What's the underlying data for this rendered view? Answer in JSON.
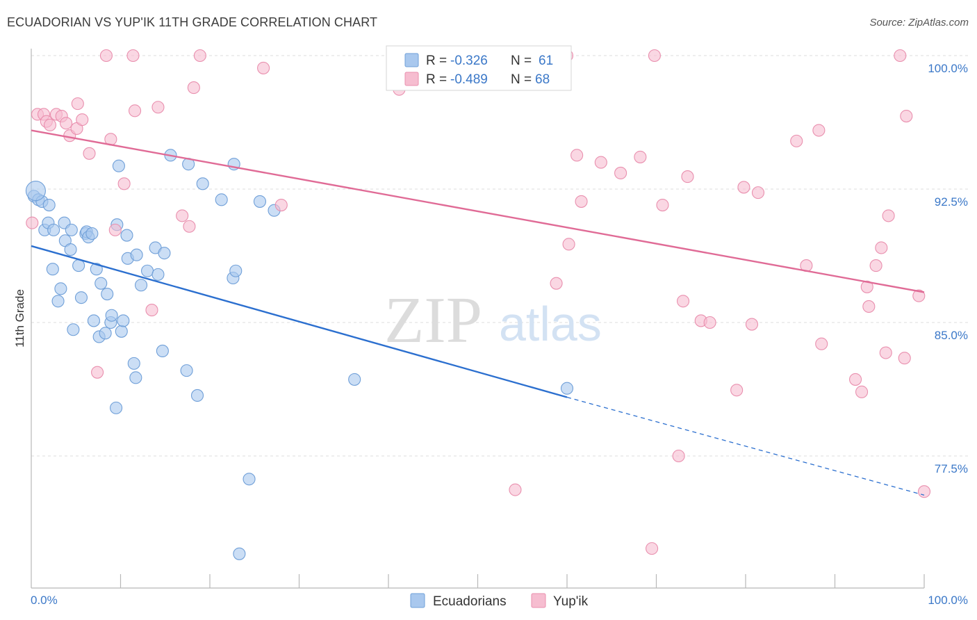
{
  "title": "ECUADORIAN VS YUP'IK 11TH GRADE CORRELATION CHART",
  "source": "Source: ZipAtlas.com",
  "watermark": {
    "zip": "ZIP",
    "atlas": "atlas"
  },
  "colors": {
    "blue_fill": "#a9c8ee",
    "blue_stroke": "#6f9fd8",
    "blue_line": "#2b6fcf",
    "pink_fill": "#f6bdd0",
    "pink_stroke": "#e98fae",
    "pink_line": "#e06b96",
    "accent_text": "#3b78c8",
    "grid": "#dedede"
  },
  "stats_legend": {
    "rows": [
      {
        "r_label": "R = ",
        "r_value": "-0.326",
        "n_label": "N = ",
        "n_value": "61",
        "series": "Ecuadorians"
      },
      {
        "r_label": "R = ",
        "r_value": "-0.489",
        "n_label": "N = ",
        "n_value": "68",
        "series": "Yup'ik"
      }
    ]
  },
  "bottom_legend": [
    "Ecuadorians",
    "Yup'ik"
  ],
  "chart_data": {
    "type": "scatter",
    "title": "ECUADORIAN VS YUP'IK 11TH GRADE CORRELATION CHART",
    "xlabel": "",
    "ylabel": "11th Grade",
    "xlim": [
      0,
      100
    ],
    "ylim": [
      70.5,
      100.8
    ],
    "x_tick_labels": [
      "0.0%",
      "100.0%"
    ],
    "y_ticks": [
      77.5,
      85.0,
      92.5,
      100.0
    ],
    "y_tick_labels": [
      "77.5%",
      "85.0%",
      "92.5%",
      "100.0%"
    ],
    "grid": true,
    "legend_position": "bottom",
    "series": [
      {
        "name": "Ecuadorians",
        "r": -0.326,
        "n": 61,
        "trend": {
          "x0": 0,
          "y0": 89.3,
          "x1": 60,
          "y1": 80.8,
          "dash_to_x": 100,
          "dash_to_y": 75.3
        },
        "points": [
          [
            0.3,
            92.1
          ],
          [
            0.8,
            91.9
          ],
          [
            1.2,
            91.8
          ],
          [
            1.5,
            90.2
          ],
          [
            1.9,
            90.6
          ],
          [
            2.5,
            90.2
          ],
          [
            2.4,
            88.0
          ],
          [
            3.0,
            86.2
          ],
          [
            3.3,
            86.9
          ],
          [
            3.7,
            90.6
          ],
          [
            3.8,
            89.6
          ],
          [
            4.4,
            89.1
          ],
          [
            4.5,
            90.2
          ],
          [
            4.7,
            84.6
          ],
          [
            5.3,
            88.2
          ],
          [
            5.6,
            86.4
          ],
          [
            6.1,
            90.0
          ],
          [
            6.2,
            90.1
          ],
          [
            6.4,
            89.8
          ],
          [
            7.0,
            85.1
          ],
          [
            7.3,
            88.0
          ],
          [
            7.6,
            84.2
          ],
          [
            7.8,
            87.2
          ],
          [
            8.3,
            84.4
          ],
          [
            8.5,
            86.6
          ],
          [
            8.9,
            85.0
          ],
          [
            9.0,
            85.4
          ],
          [
            9.5,
            80.2
          ],
          [
            9.6,
            90.5
          ],
          [
            9.8,
            93.8
          ],
          [
            10.1,
            84.5
          ],
          [
            10.3,
            85.1
          ],
          [
            10.7,
            89.9
          ],
          [
            10.8,
            88.6
          ],
          [
            11.5,
            82.7
          ],
          [
            11.7,
            81.9
          ],
          [
            11.8,
            88.8
          ],
          [
            12.3,
            87.1
          ],
          [
            13.0,
            87.9
          ],
          [
            13.9,
            89.2
          ],
          [
            14.2,
            87.7
          ],
          [
            14.9,
            88.9
          ],
          [
            14.7,
            83.4
          ],
          [
            15.6,
            94.4
          ],
          [
            17.4,
            82.3
          ],
          [
            17.6,
            93.9
          ],
          [
            18.6,
            80.9
          ],
          [
            19.2,
            92.8
          ],
          [
            21.3,
            91.9
          ],
          [
            22.7,
            93.9
          ],
          [
            22.6,
            87.5
          ],
          [
            22.9,
            87.9
          ],
          [
            23.3,
            72.0
          ],
          [
            24.4,
            76.2
          ],
          [
            25.6,
            91.8
          ],
          [
            27.2,
            91.3
          ],
          [
            36.2,
            81.8
          ],
          [
            60.0,
            81.3
          ],
          [
            2.0,
            91.6
          ],
          [
            6.8,
            90.0
          ],
          [
            0.5,
            92.4
          ]
        ]
      },
      {
        "name": "Yup'ik",
        "r": -0.489,
        "n": 68,
        "trend": {
          "x0": 0,
          "y0": 95.8,
          "x1": 100,
          "y1": 86.7
        },
        "points": [
          [
            0.1,
            90.6
          ],
          [
            0.7,
            96.7
          ],
          [
            1.4,
            96.7
          ],
          [
            1.7,
            96.3
          ],
          [
            2.1,
            96.1
          ],
          [
            2.8,
            96.7
          ],
          [
            3.4,
            96.6
          ],
          [
            3.9,
            96.2
          ],
          [
            4.3,
            95.5
          ],
          [
            5.1,
            95.9
          ],
          [
            5.2,
            97.3
          ],
          [
            5.7,
            96.4
          ],
          [
            6.5,
            94.5
          ],
          [
            7.4,
            82.2
          ],
          [
            8.4,
            100.0
          ],
          [
            8.9,
            95.3
          ],
          [
            9.4,
            90.2
          ],
          [
            10.4,
            92.8
          ],
          [
            11.4,
            100.0
          ],
          [
            11.6,
            96.9
          ],
          [
            13.5,
            85.7
          ],
          [
            14.2,
            97.1
          ],
          [
            16.9,
            91.0
          ],
          [
            17.7,
            90.4
          ],
          [
            18.2,
            98.2
          ],
          [
            18.9,
            100.0
          ],
          [
            26.0,
            99.3
          ],
          [
            28.0,
            91.6
          ],
          [
            41.2,
            98.1
          ],
          [
            44.6,
            100.0
          ],
          [
            54.2,
            75.6
          ],
          [
            58.8,
            87.2
          ],
          [
            60.0,
            100.0
          ],
          [
            60.2,
            89.4
          ],
          [
            61.1,
            94.4
          ],
          [
            61.6,
            91.8
          ],
          [
            63.8,
            94.0
          ],
          [
            66.0,
            93.4
          ],
          [
            68.2,
            94.3
          ],
          [
            69.5,
            72.3
          ],
          [
            69.8,
            100.0
          ],
          [
            70.7,
            91.6
          ],
          [
            72.5,
            77.5
          ],
          [
            73.0,
            86.2
          ],
          [
            73.5,
            93.2
          ],
          [
            75.0,
            85.1
          ],
          [
            76.0,
            85.0
          ],
          [
            79.0,
            81.2
          ],
          [
            79.8,
            92.6
          ],
          [
            80.7,
            84.9
          ],
          [
            81.4,
            92.3
          ],
          [
            85.7,
            95.2
          ],
          [
            86.8,
            88.2
          ],
          [
            88.2,
            95.8
          ],
          [
            88.5,
            83.8
          ],
          [
            92.3,
            81.8
          ],
          [
            93.0,
            81.1
          ],
          [
            93.6,
            87.0
          ],
          [
            93.8,
            85.9
          ],
          [
            94.6,
            88.2
          ],
          [
            95.2,
            89.2
          ],
          [
            95.7,
            83.3
          ],
          [
            96.0,
            91.0
          ],
          [
            97.3,
            100.0
          ],
          [
            97.8,
            83.0
          ],
          [
            98.0,
            96.6
          ],
          [
            99.4,
            86.5
          ],
          [
            100.0,
            75.5
          ]
        ]
      }
    ]
  }
}
